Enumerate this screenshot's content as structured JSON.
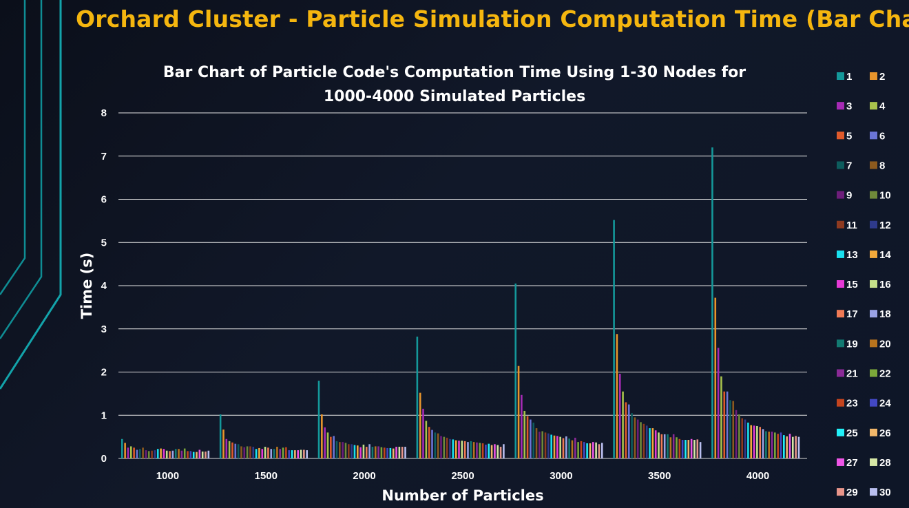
{
  "page": {
    "title": "Orchard Cluster - Particle Simulation Computation Time (Bar Chart)"
  },
  "chart_data": {
    "type": "bar",
    "title": "Bar Chart of Particle Code's Computation Time Using 1-30 Nodes for 1000-4000 Simulated Particles",
    "title_lines": [
      "Bar Chart of Particle Code's Computation Time Using 1-30 Nodes for",
      "1000-4000 Simulated Particles"
    ],
    "xlabel": "Number of Particles",
    "ylabel": "Time (s)",
    "ylim": [
      0,
      8
    ],
    "yticks": [
      0,
      1,
      2,
      3,
      4,
      5,
      6,
      7,
      8
    ],
    "grid": true,
    "legend_position": "right",
    "categories": [
      "1000",
      "1500",
      "2000",
      "2500",
      "3000",
      "3500",
      "4000"
    ],
    "series": [
      {
        "name": "1",
        "color": "#14989a",
        "values": [
          0.45,
          1.02,
          1.8,
          2.82,
          4.05,
          5.52,
          7.2
        ]
      },
      {
        "name": "2",
        "color": "#e8952c",
        "values": [
          0.36,
          0.67,
          1.02,
          1.52,
          2.14,
          2.88,
          3.72
        ]
      },
      {
        "name": "3",
        "color": "#a62ab5",
        "values": [
          0.25,
          0.45,
          0.72,
          1.15,
          1.47,
          1.96,
          2.56
        ]
      },
      {
        "name": "4",
        "color": "#a8c24c",
        "values": [
          0.28,
          0.4,
          0.6,
          0.87,
          1.1,
          1.55,
          1.9
        ]
      },
      {
        "name": "5",
        "color": "#e05a2b",
        "values": [
          0.25,
          0.37,
          0.5,
          0.73,
          0.98,
          1.3,
          1.55
        ]
      },
      {
        "name": "6",
        "color": "#6b75d6",
        "values": [
          0.2,
          0.34,
          0.52,
          0.66,
          0.9,
          1.25,
          1.55
        ]
      },
      {
        "name": "7",
        "color": "#0d5c5d",
        "values": [
          0.22,
          0.33,
          0.4,
          0.6,
          0.83,
          1.05,
          1.35
        ]
      },
      {
        "name": "8",
        "color": "#8c5a1e",
        "values": [
          0.25,
          0.28,
          0.38,
          0.58,
          0.7,
          0.95,
          1.33
        ]
      },
      {
        "name": "9",
        "color": "#6d1e7a",
        "values": [
          0.19,
          0.26,
          0.38,
          0.52,
          0.62,
          0.9,
          1.12
        ]
      },
      {
        "name": "10",
        "color": "#6f8a3a",
        "values": [
          0.17,
          0.28,
          0.36,
          0.5,
          0.63,
          0.84,
          1.02
        ]
      },
      {
        "name": "11",
        "color": "#8e3a20",
        "values": [
          0.18,
          0.28,
          0.33,
          0.48,
          0.6,
          0.8,
          0.93
        ]
      },
      {
        "name": "12",
        "color": "#2e3a8c",
        "values": [
          0.19,
          0.27,
          0.33,
          0.45,
          0.58,
          0.76,
          0.9
        ]
      },
      {
        "name": "13",
        "color": "#19e0ef",
        "values": [
          0.22,
          0.22,
          0.31,
          0.44,
          0.55,
          0.7,
          0.83
        ]
      },
      {
        "name": "14",
        "color": "#f2a93b",
        "values": [
          0.23,
          0.24,
          0.3,
          0.42,
          0.53,
          0.7,
          0.77
        ]
      },
      {
        "name": "15",
        "color": "#e63ad6",
        "values": [
          0.22,
          0.22,
          0.26,
          0.41,
          0.52,
          0.65,
          0.76
        ]
      },
      {
        "name": "16",
        "color": "#c5e08a",
        "values": [
          0.18,
          0.27,
          0.32,
          0.41,
          0.5,
          0.6,
          0.75
        ]
      },
      {
        "name": "17",
        "color": "#f07a55",
        "values": [
          0.17,
          0.25,
          0.27,
          0.4,
          0.47,
          0.56,
          0.73
        ]
      },
      {
        "name": "18",
        "color": "#9aa3e6",
        "values": [
          0.18,
          0.22,
          0.33,
          0.38,
          0.51,
          0.56,
          0.68
        ]
      },
      {
        "name": "19",
        "color": "#137a72",
        "values": [
          0.22,
          0.22,
          0.27,
          0.4,
          0.46,
          0.56,
          0.63
        ]
      },
      {
        "name": "20",
        "color": "#b8741e",
        "values": [
          0.22,
          0.27,
          0.28,
          0.38,
          0.42,
          0.49,
          0.62
        ]
      },
      {
        "name": "21",
        "color": "#8a2a96",
        "values": [
          0.18,
          0.22,
          0.28,
          0.37,
          0.48,
          0.56,
          0.62
        ]
      },
      {
        "name": "22",
        "color": "#7ca83a",
        "values": [
          0.23,
          0.25,
          0.26,
          0.36,
          0.38,
          0.49,
          0.6
        ]
      },
      {
        "name": "23",
        "color": "#c4441e",
        "values": [
          0.17,
          0.26,
          0.25,
          0.35,
          0.4,
          0.45,
          0.57
        ]
      },
      {
        "name": "24",
        "color": "#4248c4",
        "values": [
          0.17,
          0.19,
          0.24,
          0.32,
          0.38,
          0.43,
          0.6
        ]
      },
      {
        "name": "25",
        "color": "#22f0f8",
        "values": [
          0.15,
          0.19,
          0.24,
          0.34,
          0.35,
          0.43,
          0.54
        ]
      },
      {
        "name": "26",
        "color": "#f2b76a",
        "values": [
          0.15,
          0.19,
          0.23,
          0.31,
          0.35,
          0.43,
          0.51
        ]
      },
      {
        "name": "27",
        "color": "#ee55e6",
        "values": [
          0.2,
          0.19,
          0.27,
          0.33,
          0.38,
          0.45,
          0.57
        ]
      },
      {
        "name": "28",
        "color": "#d6e8a6",
        "values": [
          0.16,
          0.2,
          0.27,
          0.31,
          0.37,
          0.43,
          0.5
        ]
      },
      {
        "name": "29",
        "color": "#e8958a",
        "values": [
          0.16,
          0.2,
          0.27,
          0.27,
          0.33,
          0.44,
          0.52
        ]
      },
      {
        "name": "30",
        "color": "#b9bff0",
        "values": [
          0.18,
          0.19,
          0.27,
          0.33,
          0.36,
          0.38,
          0.5
        ]
      }
    ]
  }
}
